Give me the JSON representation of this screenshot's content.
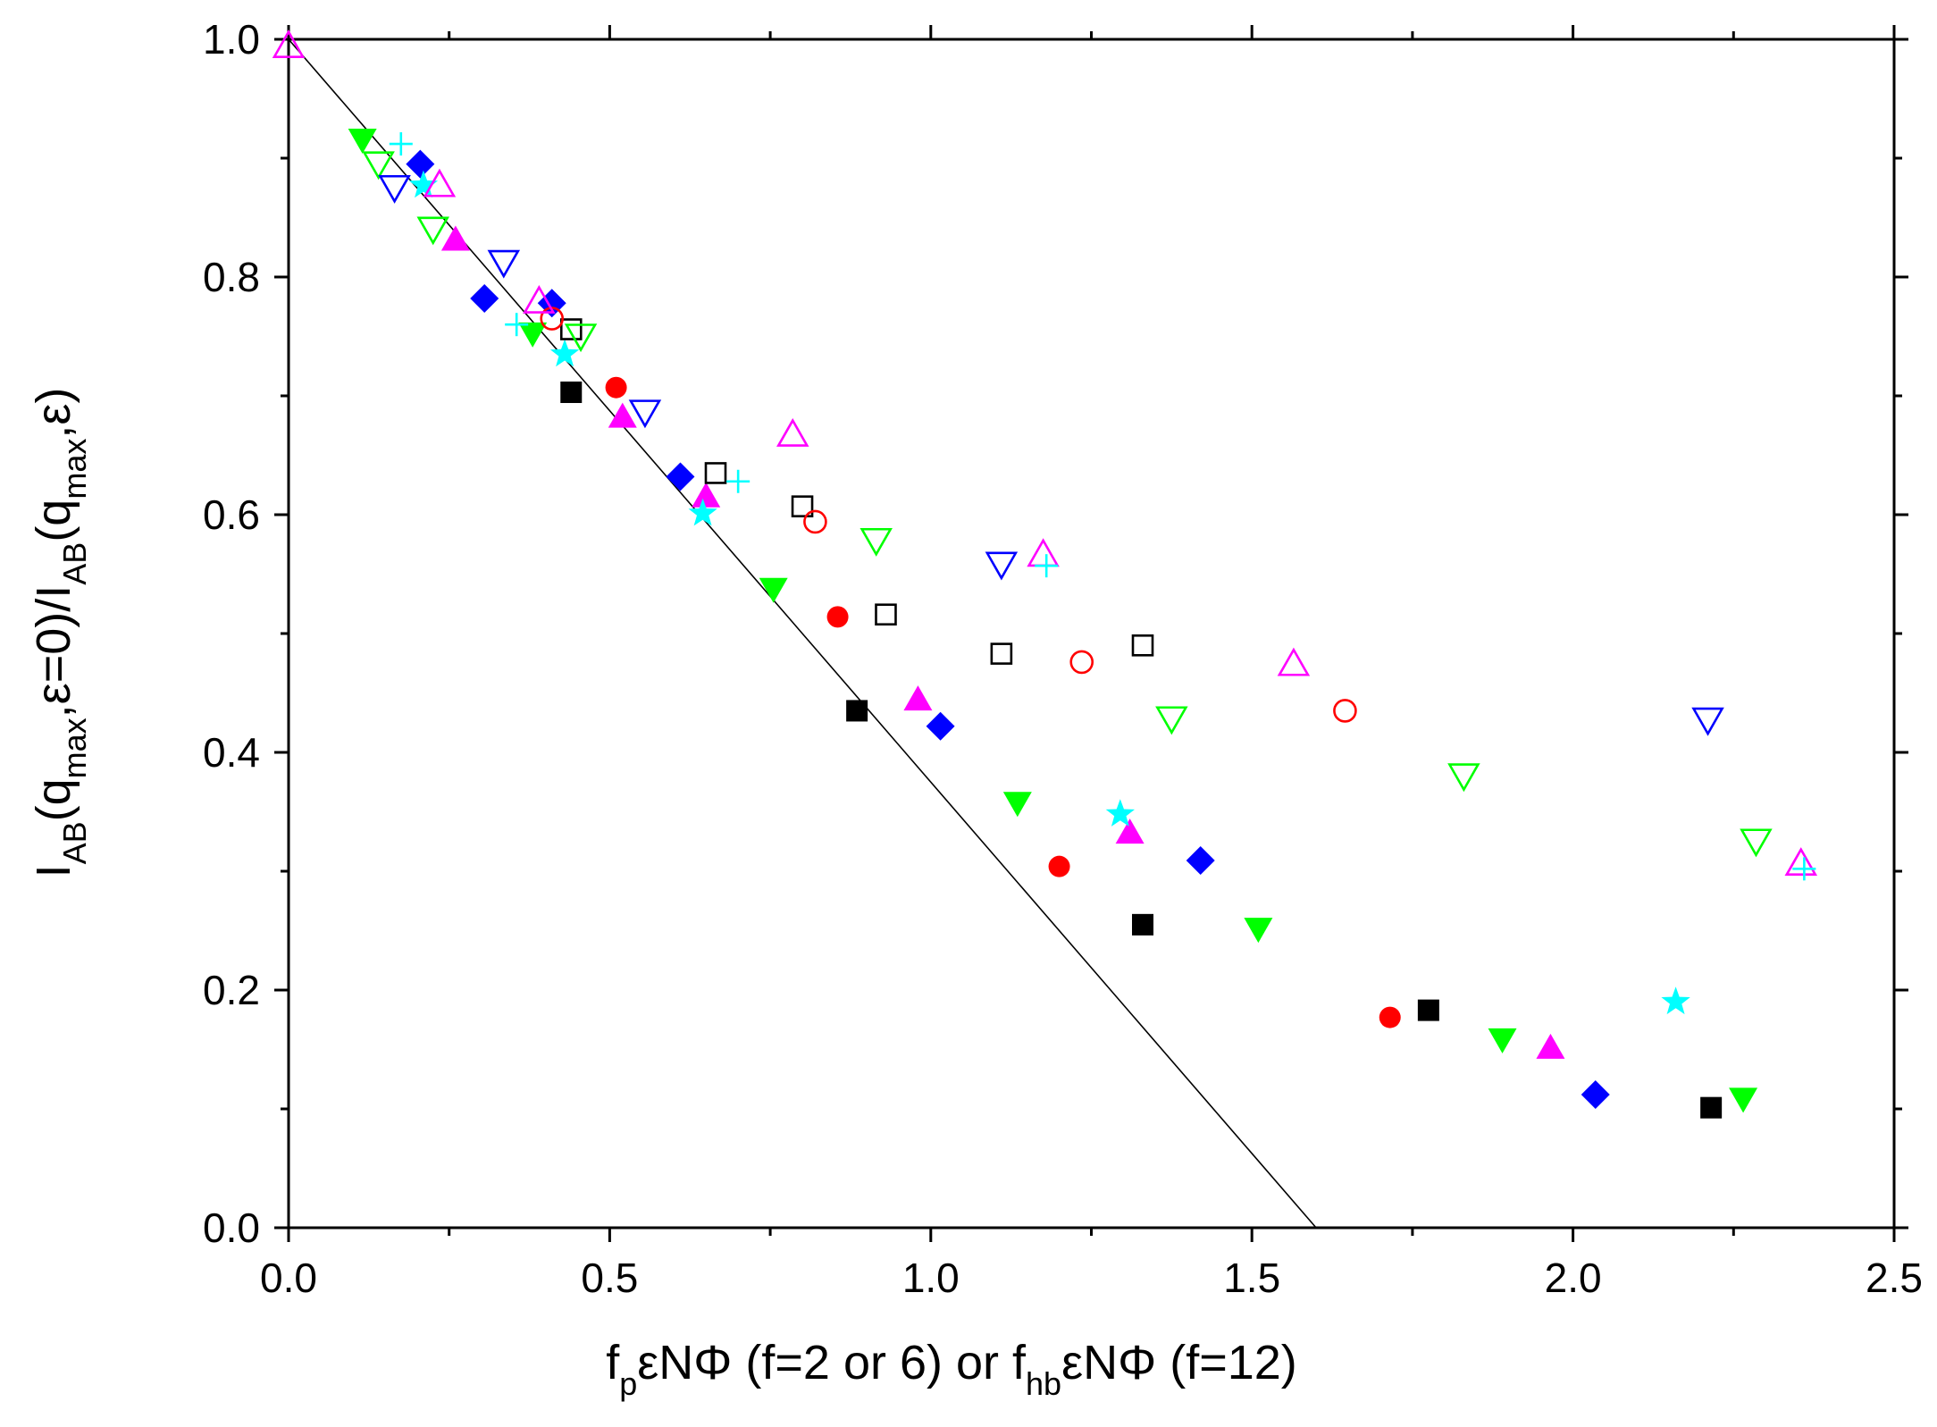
{
  "chart_data": {
    "type": "scatter",
    "title": "",
    "xlabel": "fpεNΦ (f=2 or 6) or fhbεNΦ (f=12)",
    "ylabel": "IAB(qmax,ε=0)/IAB(qmax,ε)",
    "xlabel_parts": {
      "a": "f",
      "a_sub": "p",
      "b": "εNΦ (f=2 or 6) or f",
      "b_sub": "hb",
      "c": "εNΦ (f=12)"
    },
    "ylabel_parts": {
      "a": "I",
      "a_sub": "AB",
      "b": "(q",
      "b_sub": "max",
      "c": ",ε=0)/I",
      "c_sub": "AB",
      "d": "(q",
      "d_sub": "max",
      "e": ",ε)"
    },
    "xlim": [
      0,
      2.5
    ],
    "ylim": [
      0,
      1.0
    ],
    "xticks": [
      0.0,
      0.5,
      1.0,
      1.5,
      2.0,
      2.5
    ],
    "xtick_labels": [
      "0.0",
      "0.5",
      "1.0",
      "1.5",
      "2.0",
      "2.5"
    ],
    "yticks": [
      0.0,
      0.2,
      0.4,
      0.6,
      0.8,
      1.0
    ],
    "ytick_labels": [
      "0.0",
      "0.2",
      "0.4",
      "0.6",
      "0.8",
      "1.0"
    ],
    "grid": false,
    "legend": "none",
    "reference_line": {
      "x": [
        0,
        1.6
      ],
      "y": [
        1.0,
        0.0
      ],
      "color": "#000000"
    },
    "series": [
      {
        "name": "black filled square",
        "marker": "square",
        "filled": true,
        "color": "#000000",
        "x": [
          0.44,
          0.885,
          1.33,
          1.775,
          2.215
        ],
        "y": [
          0.703,
          0.435,
          0.255,
          0.183,
          0.101
        ]
      },
      {
        "name": "red filled circle",
        "marker": "circle",
        "filled": true,
        "color": "#ff0000",
        "x": [
          0.51,
          0.855,
          1.2,
          1.715
        ],
        "y": [
          0.707,
          0.514,
          0.304,
          0.177
        ]
      },
      {
        "name": "magenta filled triangle up",
        "marker": "triangle-up",
        "filled": true,
        "color": "#ff00ff",
        "x": [
          0.26,
          0.52,
          0.65,
          0.98,
          1.31,
          1.965
        ],
        "y": [
          0.832,
          0.683,
          0.616,
          0.445,
          0.333,
          0.152
        ]
      },
      {
        "name": "green filled triangle down",
        "marker": "triangle-down",
        "filled": true,
        "color": "#00ff00",
        "x": [
          0.115,
          0.38,
          0.755,
          1.135,
          1.51,
          1.89,
          2.265
        ],
        "y": [
          0.915,
          0.752,
          0.537,
          0.357,
          0.251,
          0.158,
          0.108
        ]
      },
      {
        "name": "blue filled diamond",
        "marker": "diamond",
        "filled": true,
        "color": "#0000ff",
        "x": [
          0.205,
          0.305,
          0.41,
          0.61,
          1.015,
          1.42,
          2.035
        ],
        "y": [
          0.895,
          0.782,
          0.778,
          0.632,
          0.422,
          0.309,
          0.112
        ]
      },
      {
        "name": "cyan star",
        "marker": "star",
        "filled": true,
        "color": "#00ffff",
        "x": [
          0.21,
          0.43,
          0.645,
          1.295,
          2.16
        ],
        "y": [
          0.877,
          0.735,
          0.601,
          0.348,
          0.19
        ]
      },
      {
        "name": "black open square",
        "marker": "square",
        "filled": false,
        "color": "#000000",
        "x": [
          0.44,
          0.665,
          0.8,
          0.93,
          1.11,
          1.33
        ],
        "y": [
          0.756,
          0.635,
          0.607,
          0.516,
          0.483,
          0.49
        ]
      },
      {
        "name": "red open circle",
        "marker": "circle",
        "filled": false,
        "color": "#ff0000",
        "x": [
          0.41,
          0.82,
          1.235,
          1.645
        ],
        "y": [
          0.765,
          0.594,
          0.476,
          0.435
        ]
      },
      {
        "name": "magenta open triangle up",
        "marker": "triangle-up",
        "filled": false,
        "color": "#ff00ff",
        "x": [
          0.0,
          0.235,
          0.39,
          0.785,
          1.175,
          1.565,
          2.355
        ],
        "y": [
          0.995,
          0.878,
          0.78,
          0.668,
          0.567,
          0.475,
          0.307
        ]
      },
      {
        "name": "green open triangle down",
        "marker": "triangle-down",
        "filled": false,
        "color": "#00ff00",
        "x": [
          0.14,
          0.225,
          0.455,
          0.915,
          1.375,
          1.83,
          2.285
        ],
        "y": [
          0.895,
          0.84,
          0.75,
          0.578,
          0.428,
          0.38,
          0.325
        ]
      },
      {
        "name": "blue open triangle down",
        "marker": "triangle-down",
        "filled": false,
        "color": "#0000ff",
        "x": [
          0.165,
          0.335,
          0.555,
          1.11,
          2.21
        ],
        "y": [
          0.875,
          0.812,
          0.686,
          0.558,
          0.427
        ]
      },
      {
        "name": "cyan plus",
        "marker": "plus",
        "filled": false,
        "color": "#00ffff",
        "x": [
          0.175,
          0.355,
          0.7,
          1.18,
          2.36
        ],
        "y": [
          0.912,
          0.76,
          0.628,
          0.557,
          0.302
        ]
      }
    ]
  }
}
